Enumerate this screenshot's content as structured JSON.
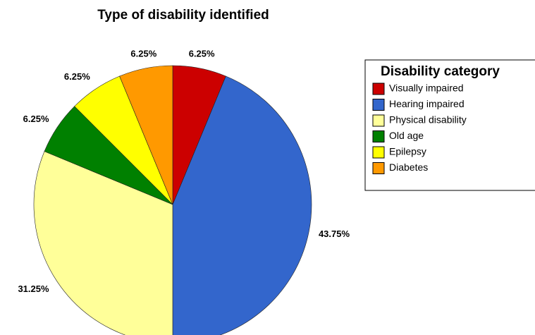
{
  "chart_data": {
    "type": "pie",
    "title": "Type of disability identified",
    "legend_title": "Disability category",
    "legend": "right",
    "categories": [
      "Visually impaired",
      "Hearing impaired",
      "Physical disability",
      "Old age",
      "Epilepsy",
      "Diabetes"
    ],
    "values": [
      6.25,
      43.75,
      31.25,
      6.25,
      6.25,
      6.25
    ],
    "value_labels": [
      "6.25%",
      "43.75%",
      "31.25%",
      "6.25%",
      "6.25%",
      "6.25%"
    ],
    "colors": [
      "#cc0000",
      "#3366cc",
      "#ffff99",
      "#008000",
      "#ffff00",
      "#ff9900"
    ]
  }
}
